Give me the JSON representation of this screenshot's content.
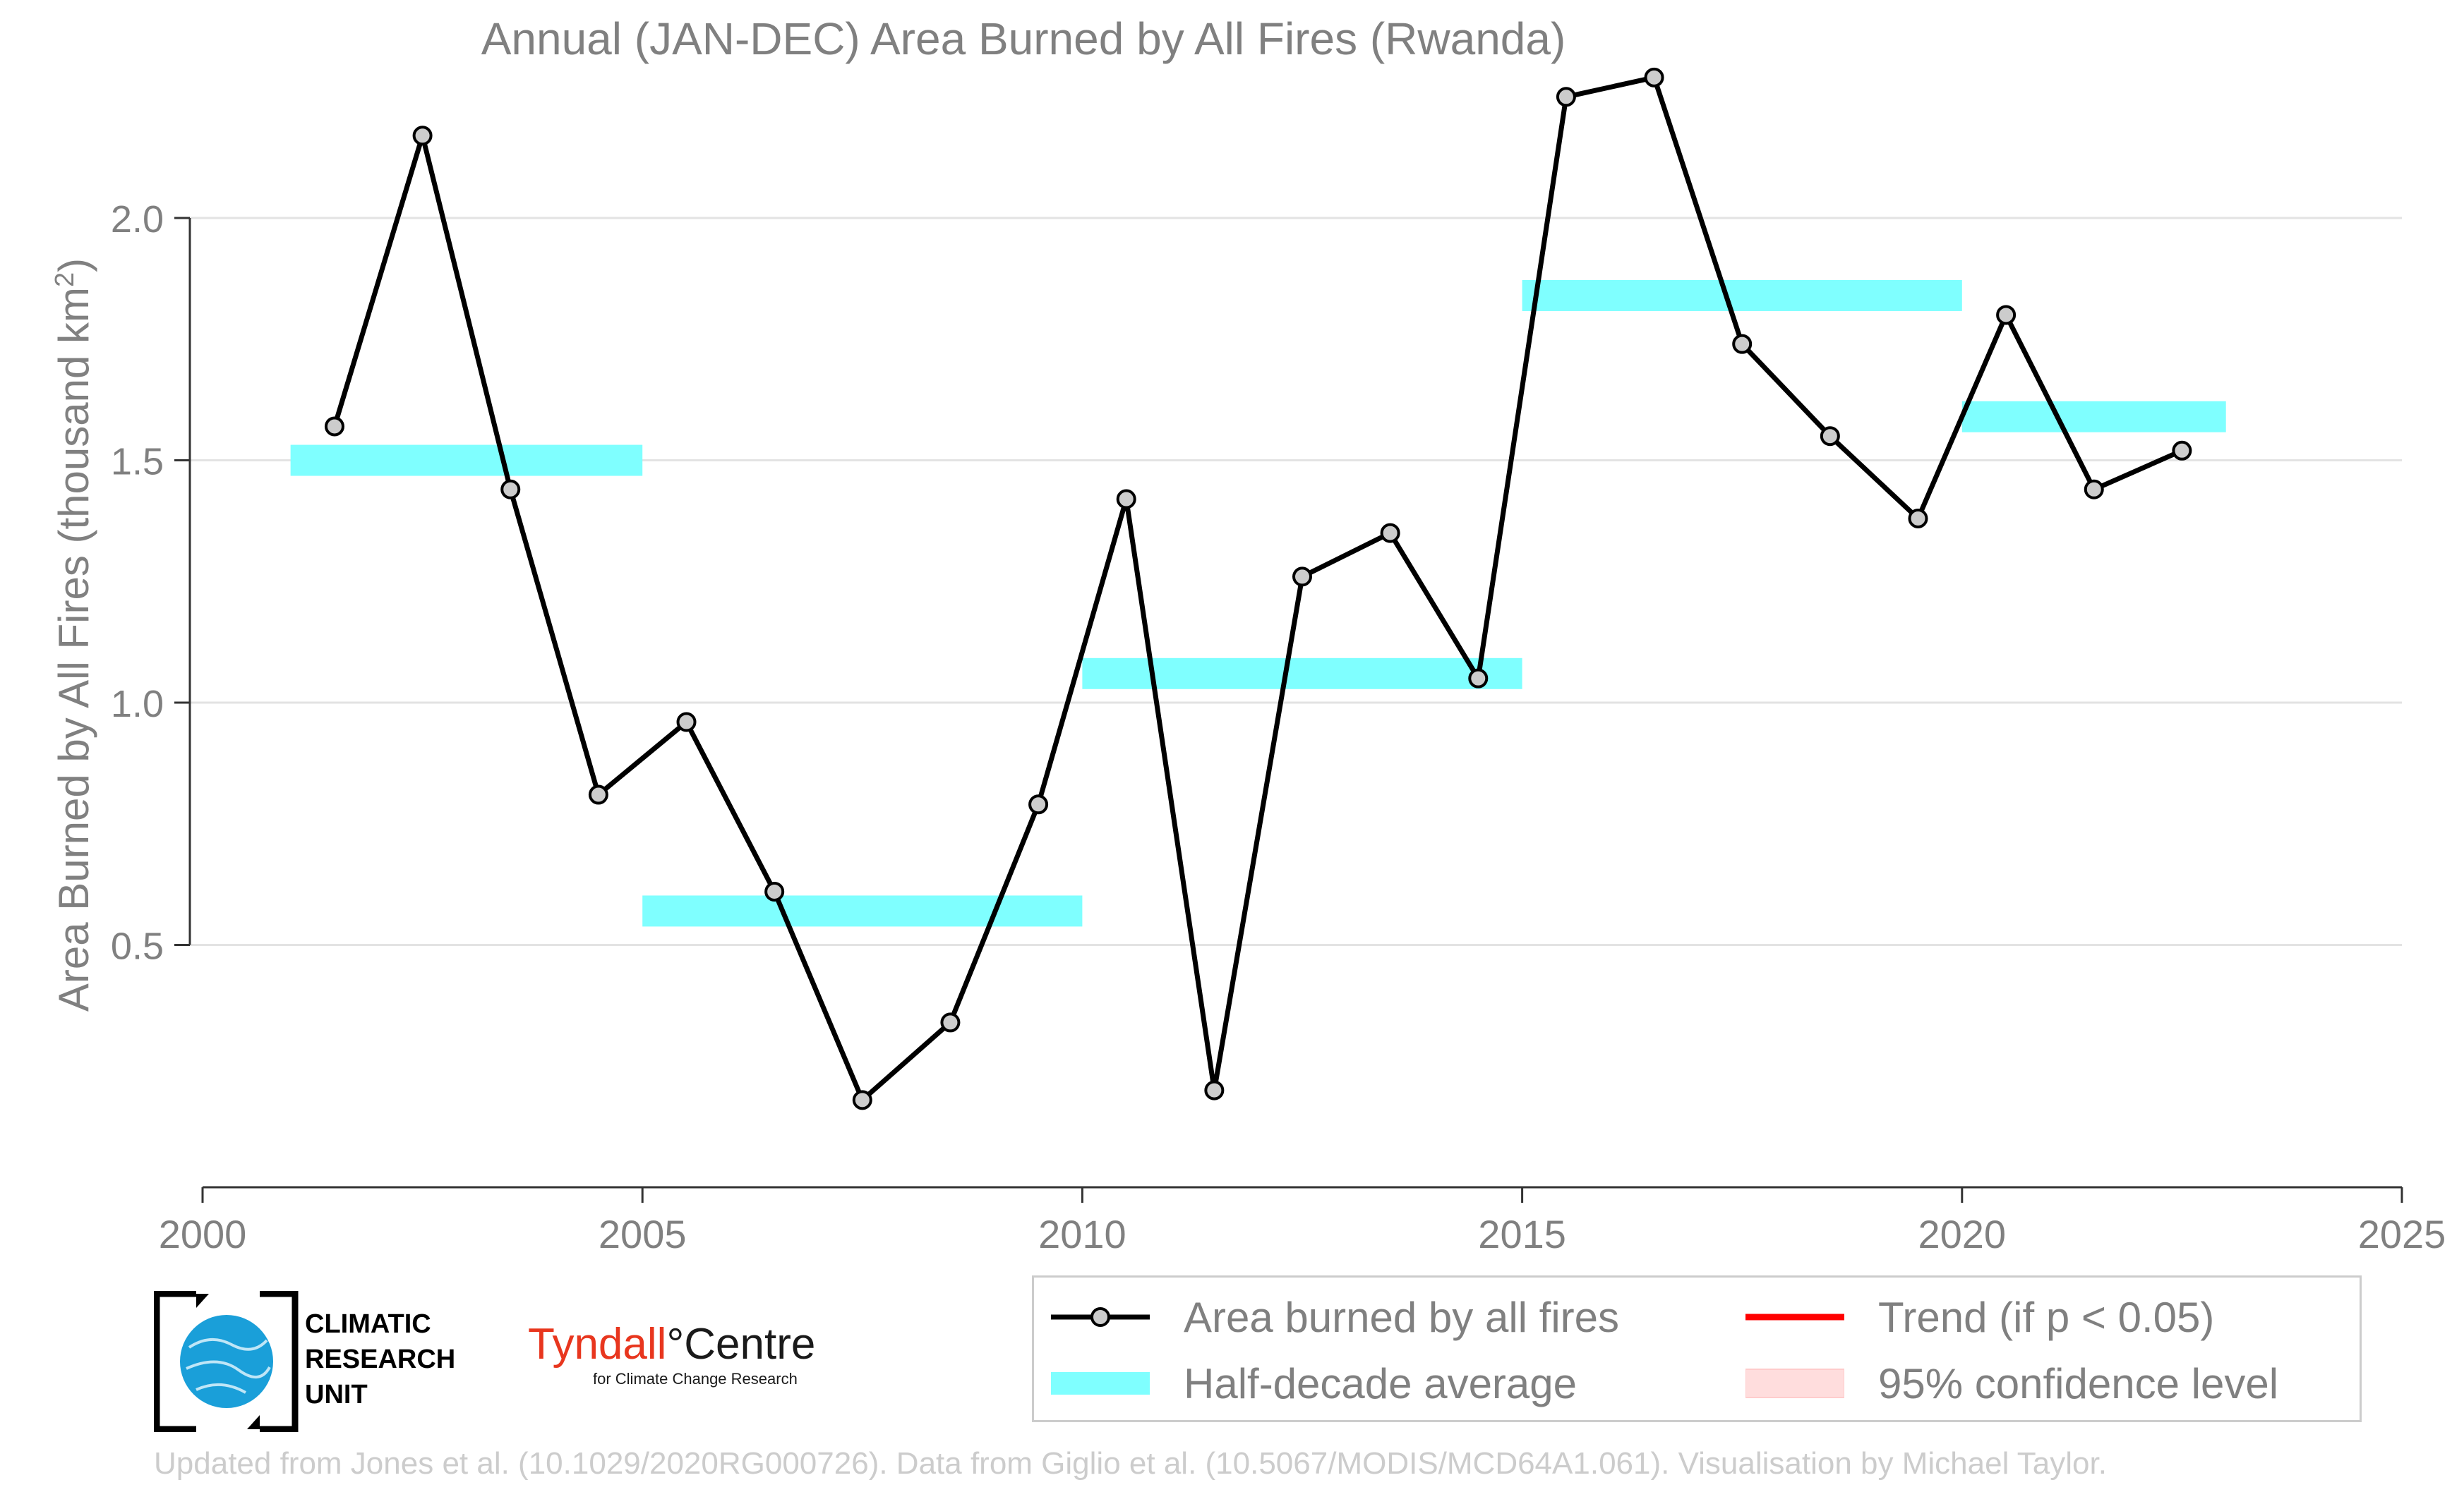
{
  "chart_data": {
    "type": "line",
    "title": "Annual (JAN-DEC) Area Burned by All Fires (Rwanda)",
    "ylabel": "Area Burned by All Fires (thousand km",
    "ylabel_superscript": "2",
    "ylabel_suffix": ")",
    "xlim": [
      2000,
      2025
    ],
    "ylim": [
      0.0,
      2.38
    ],
    "xticks": [
      2000,
      2005,
      2010,
      2015,
      2020,
      2025
    ],
    "xtick_labels": [
      "2000",
      "2005",
      "2010",
      "2015",
      "2020",
      "2025"
    ],
    "yticks": [
      0.5,
      1.0,
      1.5,
      2.0
    ],
    "ytick_labels": [
      "0.5",
      "1.0",
      "1.5",
      "2.0"
    ],
    "grid": "horizontal",
    "series": [
      {
        "name": "Area burned by all fires",
        "color": "#000000",
        "marker_fill": "#cccccc",
        "x": [
          2001.5,
          2002.5,
          2003.5,
          2004.5,
          2005.5,
          2006.5,
          2007.5,
          2008.5,
          2009.5,
          2010.5,
          2011.5,
          2012.5,
          2013.5,
          2014.5,
          2015.5,
          2016.5,
          2017.5,
          2018.5,
          2019.5,
          2020.5,
          2021.5,
          2022.5
        ],
        "y": [
          1.57,
          2.17,
          1.44,
          0.81,
          0.96,
          0.61,
          0.18,
          0.34,
          0.79,
          1.42,
          0.2,
          1.26,
          1.35,
          1.05,
          2.25,
          2.29,
          1.74,
          1.55,
          1.38,
          1.8,
          1.44,
          1.52
        ]
      }
    ],
    "half_decade_average": {
      "name": "Half-decade average",
      "color": "#7fffff",
      "segments": [
        {
          "x_start": 2001,
          "x_end": 2005,
          "y": 1.5
        },
        {
          "x_start": 2005,
          "x_end": 2010,
          "y": 0.57
        },
        {
          "x_start": 2010,
          "x_end": 2015,
          "y": 1.06
        },
        {
          "x_start": 2015,
          "x_end": 2020,
          "y": 1.84
        },
        {
          "x_start": 2020,
          "x_end": 2023,
          "y": 1.59
        }
      ]
    },
    "legend": {
      "placement": "bottom-right",
      "entries": [
        {
          "label": "Area burned by all fires",
          "kind": "line-marker",
          "color": "#000000"
        },
        {
          "label": "Trend (if p < 0.05)",
          "kind": "line",
          "color": "#ff0000"
        },
        {
          "label": "Half-decade average",
          "kind": "band",
          "color": "#7fffff"
        },
        {
          "label": "95% confidence level",
          "kind": "band",
          "color": "#ffdddd"
        }
      ]
    }
  },
  "logos": {
    "cru": {
      "line1": "CLIMATIC",
      "line2": "RESEARCH",
      "line3": "UNIT"
    },
    "tyndall": {
      "name_part1": "Tyndall",
      "degree": "°",
      "name_part2": "Centre",
      "subtitle": "for Climate Change Research"
    }
  },
  "credit": "Updated from Jones et al. (10.1029/2020RG000726). Data from Giglio et al. (10.5067/MODIS/MCD64A1.061). Visualisation by Michael Taylor."
}
